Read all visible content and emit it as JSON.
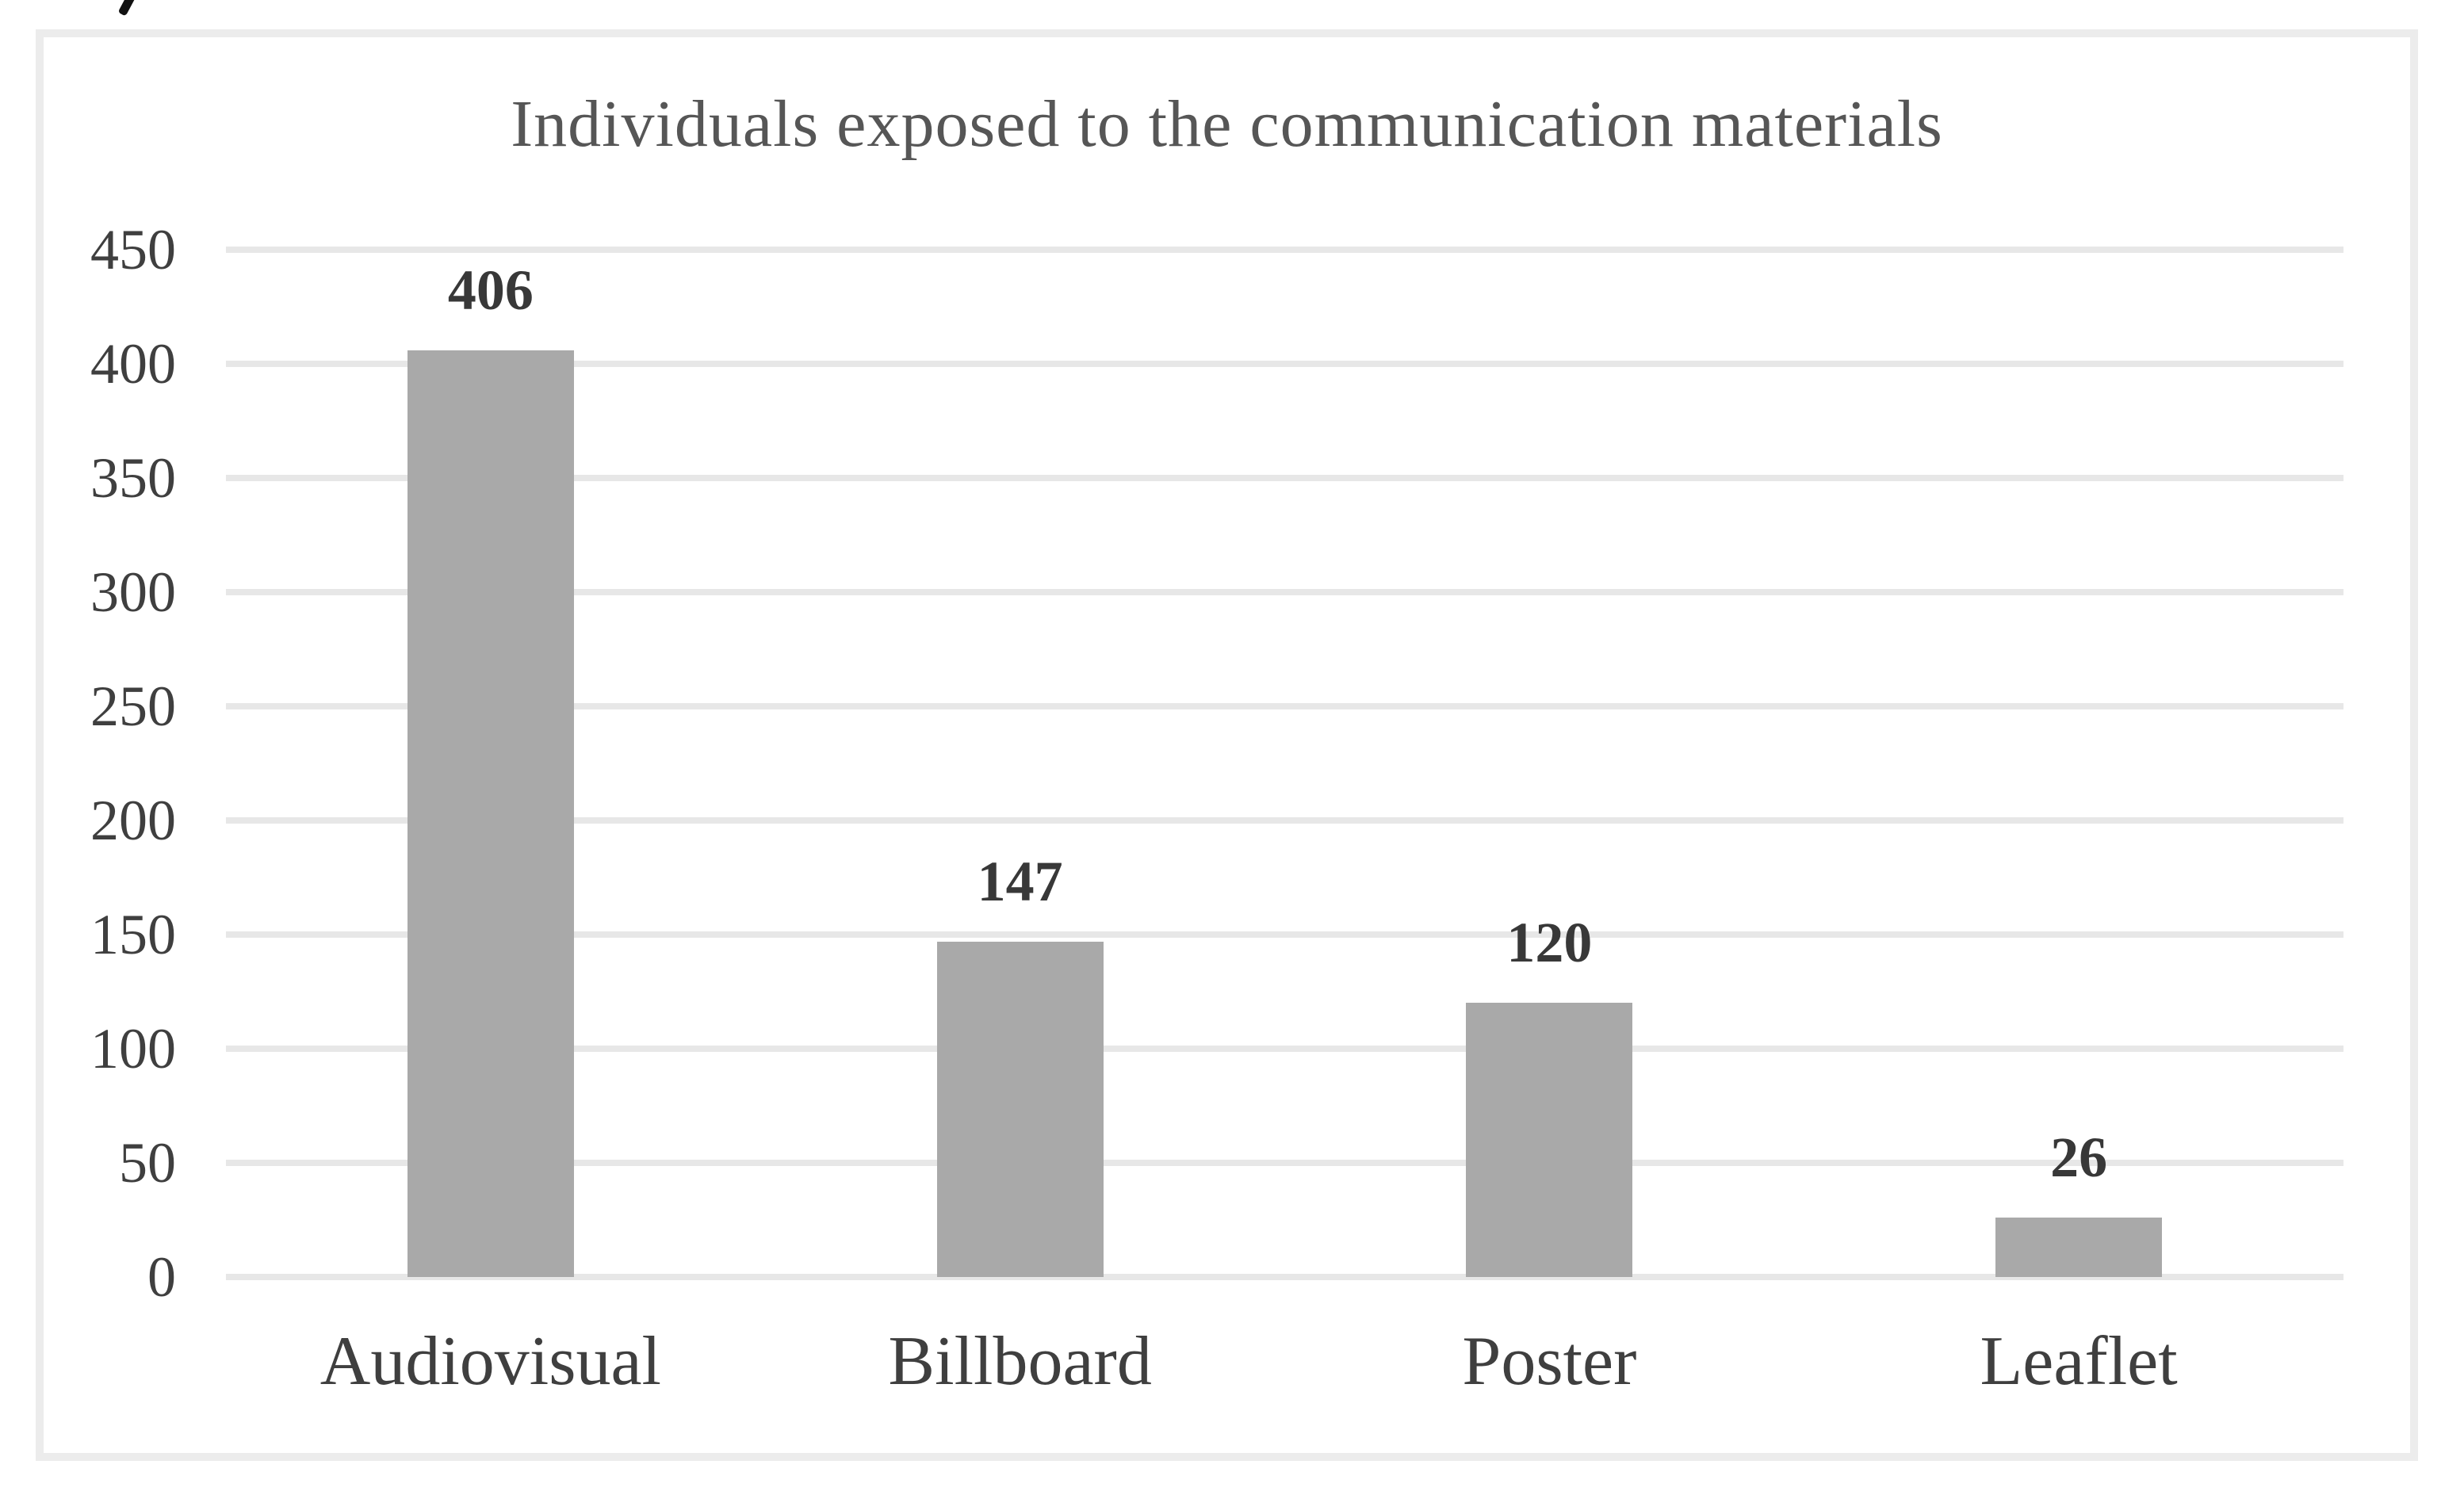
{
  "chart_data": {
    "type": "bar",
    "title": "Individuals exposed to the communication materials",
    "categories": [
      "Audiovisual",
      "Billboard",
      "Poster",
      "Leaflet"
    ],
    "values": [
      406,
      147,
      120,
      26
    ],
    "value_labels": [
      "406",
      "147",
      "120",
      "26"
    ],
    "y_ticks": [
      450,
      400,
      350,
      300,
      250,
      200,
      150,
      100,
      50,
      0
    ],
    "ylim": [
      0,
      450
    ],
    "xlabel": "",
    "ylabel": "",
    "grid": true,
    "legend": false,
    "colors": {
      "bar": "#a9a9a9",
      "gridline": "#e7e7e7",
      "frame_border": "#ececec",
      "title_text": "#565656",
      "axis_text": "#3f3f3f",
      "value_text": "#383838",
      "background": "#ffffff"
    }
  }
}
